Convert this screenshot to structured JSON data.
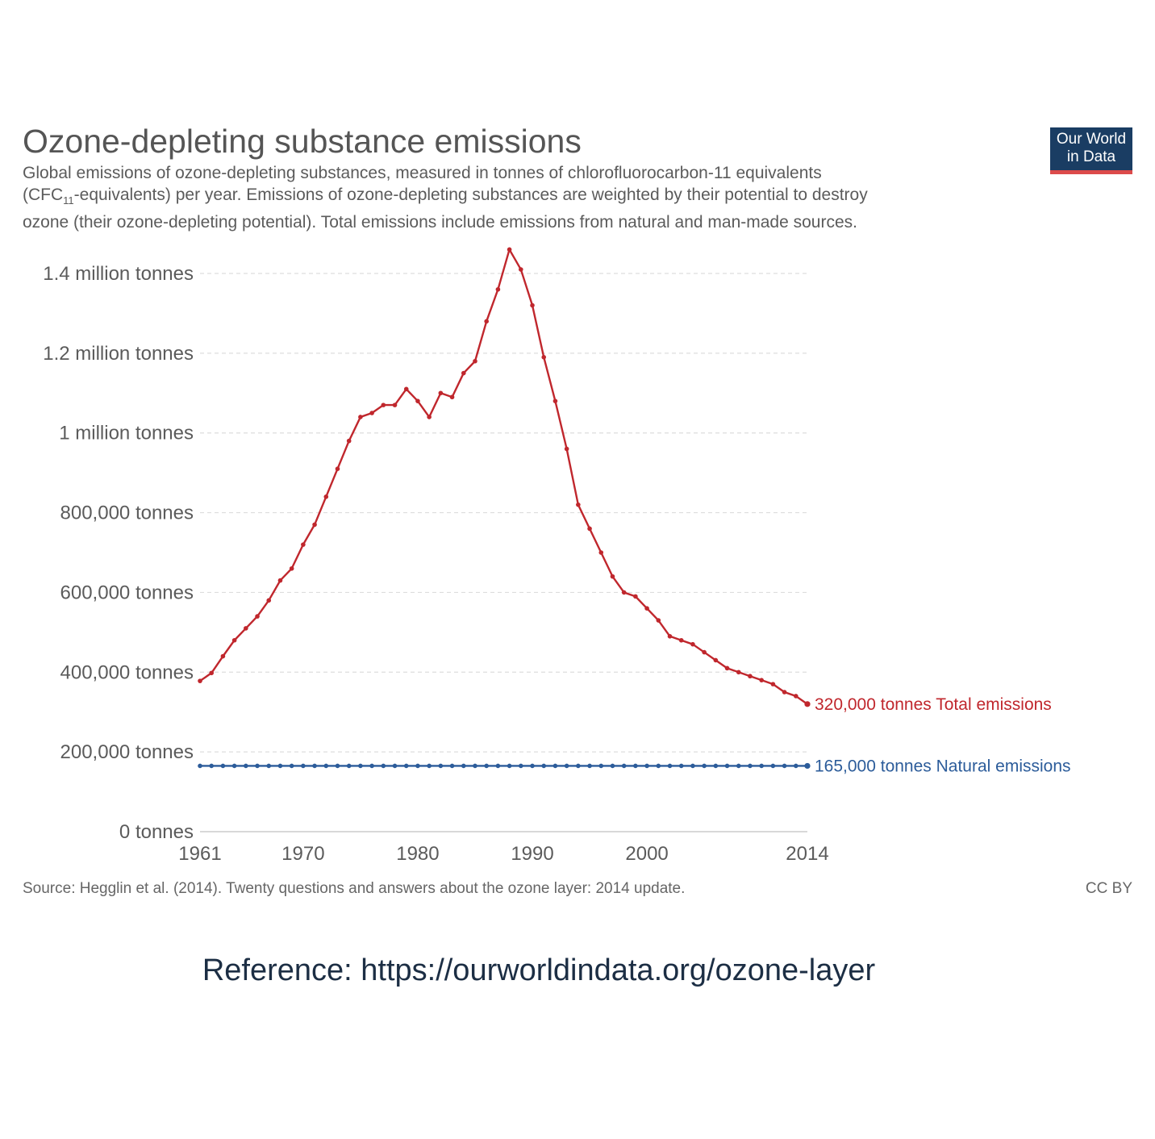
{
  "header": {
    "title": "Ozone-depleting substance emissions",
    "subtitle_line1": "Global emissions of ozone-depleting substances, measured in tonnes of chlorofluorocarbon-11 equivalents",
    "subtitle_line2_pre": "(CFC",
    "subtitle_line2_sub": "11",
    "subtitle_line2_post": "-equivalents) per year. Emissions of ozone-depleting substances are weighted by their potential to destroy",
    "subtitle_line3": "ozone (their ozone-depleting potential). Total emissions include emissions from natural and man-made sources."
  },
  "logo": {
    "line1": "Our World",
    "line2": "in Data",
    "bg_color": "#1a3d63",
    "accent_color": "#dc4b4b"
  },
  "footer": {
    "source": "Source: Hegglin et al. (2014). Twenty questions and answers about the ozone layer: 2014 update.",
    "license": "CC BY"
  },
  "reference": "Reference: https://ourworldindata.org/ozone-layer",
  "chart_data": {
    "type": "line",
    "x": [
      1961,
      1962,
      1963,
      1964,
      1965,
      1966,
      1967,
      1968,
      1969,
      1970,
      1971,
      1972,
      1973,
      1974,
      1975,
      1976,
      1977,
      1978,
      1979,
      1980,
      1981,
      1982,
      1983,
      1984,
      1985,
      1986,
      1987,
      1988,
      1989,
      1990,
      1991,
      1992,
      1993,
      1994,
      1995,
      1996,
      1997,
      1998,
      1999,
      2000,
      2001,
      2002,
      2003,
      2004,
      2005,
      2006,
      2007,
      2008,
      2009,
      2010,
      2011,
      2012,
      2013,
      2014
    ],
    "series": [
      {
        "name": "Total emissions",
        "color": "#c0272d",
        "end_label": "320,000 tonnes Total emissions",
        "values": [
          378000,
          398000,
          440000,
          480000,
          510000,
          540000,
          580000,
          630000,
          660000,
          720000,
          770000,
          840000,
          910000,
          980000,
          1040000,
          1050000,
          1070000,
          1070000,
          1110000,
          1080000,
          1040000,
          1100000,
          1090000,
          1150000,
          1180000,
          1280000,
          1360000,
          1460000,
          1410000,
          1320000,
          1190000,
          1080000,
          960000,
          820000,
          760000,
          700000,
          640000,
          600000,
          590000,
          560000,
          530000,
          490000,
          480000,
          470000,
          450000,
          430000,
          410000,
          400000,
          390000,
          380000,
          370000,
          350000,
          340000,
          320000
        ]
      },
      {
        "name": "Natural emissions",
        "color": "#2c5c9a",
        "end_label": "165,000 tonnes Natural emissions",
        "values": [
          165000,
          165000,
          165000,
          165000,
          165000,
          165000,
          165000,
          165000,
          165000,
          165000,
          165000,
          165000,
          165000,
          165000,
          165000,
          165000,
          165000,
          165000,
          165000,
          165000,
          165000,
          165000,
          165000,
          165000,
          165000,
          165000,
          165000,
          165000,
          165000,
          165000,
          165000,
          165000,
          165000,
          165000,
          165000,
          165000,
          165000,
          165000,
          165000,
          165000,
          165000,
          165000,
          165000,
          165000,
          165000,
          165000,
          165000,
          165000,
          165000,
          165000,
          165000,
          165000,
          165000,
          165000
        ]
      }
    ],
    "y_ticks": [
      {
        "value": 0,
        "label": "0 tonnes"
      },
      {
        "value": 200000,
        "label": "200,000 tonnes"
      },
      {
        "value": 400000,
        "label": "400,000 tonnes"
      },
      {
        "value": 600000,
        "label": "600,000 tonnes"
      },
      {
        "value": 800000,
        "label": "800,000 tonnes"
      },
      {
        "value": 1000000,
        "label": "1 million tonnes"
      },
      {
        "value": 1200000,
        "label": "1.2 million tonnes"
      },
      {
        "value": 1400000,
        "label": "1.4 million tonnes"
      }
    ],
    "x_ticks": [
      {
        "value": 1961,
        "label": "1961"
      },
      {
        "value": 1970,
        "label": "1970"
      },
      {
        "value": 1980,
        "label": "1980"
      },
      {
        "value": 1990,
        "label": "1990"
      },
      {
        "value": 2000,
        "label": "2000"
      },
      {
        "value": 2014,
        "label": "2014"
      }
    ],
    "xlim": [
      1961,
      2014
    ],
    "ylim": [
      0,
      1400000
    ],
    "grid": "horizontal dashed",
    "legend": "end-of-line labels"
  }
}
